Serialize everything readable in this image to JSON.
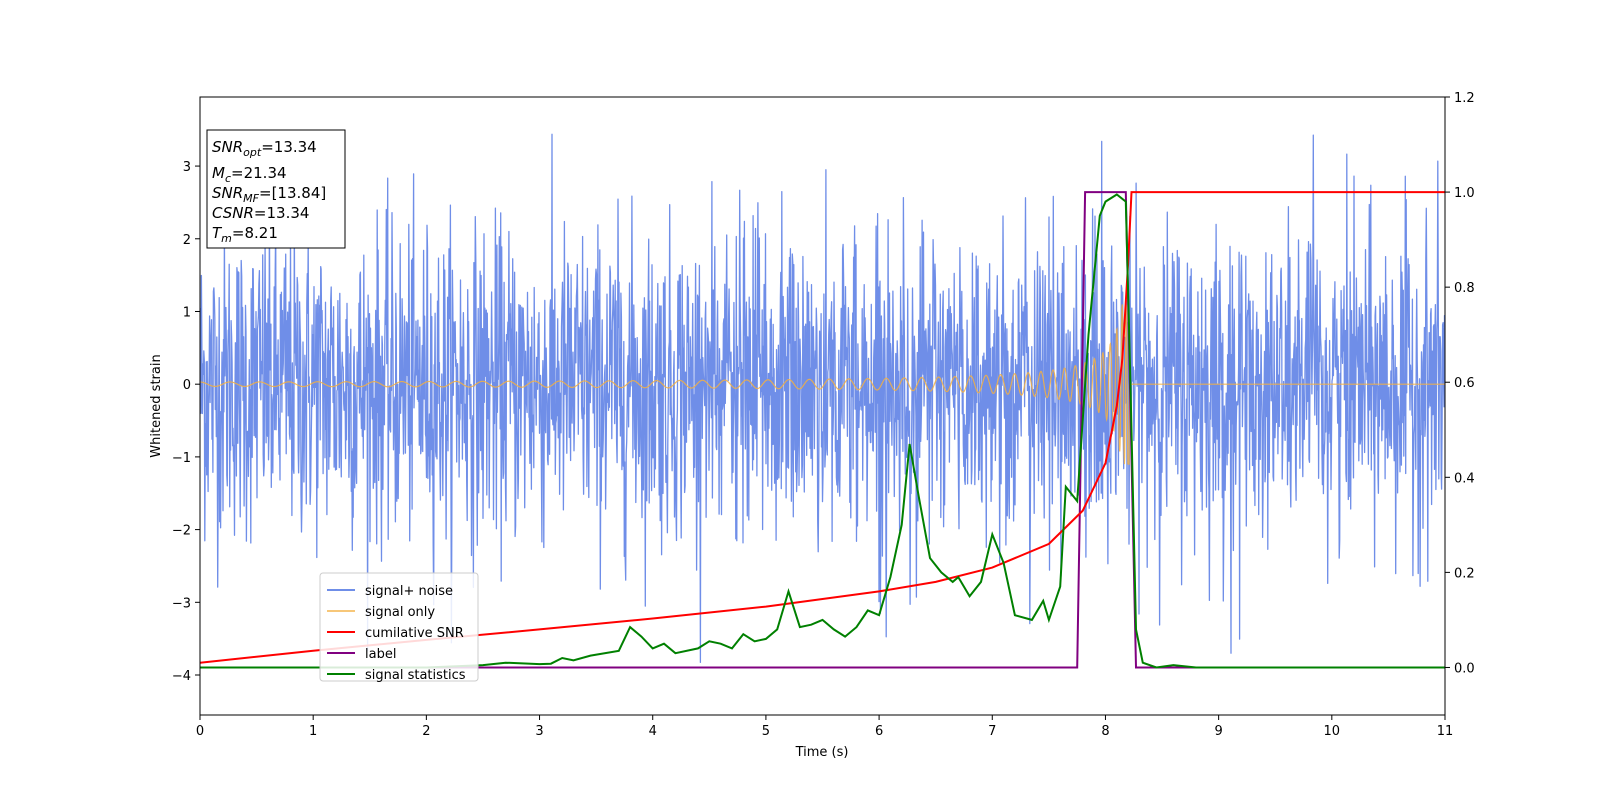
{
  "chart_data": {
    "type": "line",
    "title": "",
    "xlabel": "Time (s)",
    "ylabel": "Whitened strain",
    "y2label": "",
    "xlim": [
      0,
      11
    ],
    "ylim": [
      -4.55,
      3.95
    ],
    "y2lim": [
      -0.1,
      1.2
    ],
    "x_ticks": [
      "0",
      "1",
      "2",
      "3",
      "4",
      "5",
      "6",
      "7",
      "8",
      "9",
      "10",
      "11"
    ],
    "y_ticks": [
      "3",
      "2",
      "1",
      "0",
      "−1",
      "−2",
      "−3",
      "−4"
    ],
    "y2_ticks": [
      "1.2",
      "1.0",
      "0.8",
      "0.6",
      "0.4",
      "0.2",
      "0.0"
    ],
    "grid": false,
    "legend_position": "lower-left",
    "info_box": {
      "snr_opt_label": "SNR",
      "snr_opt_sub": "opt",
      "snr_opt_value": "=13.34",
      "mc_label": "M",
      "mc_sub": "c",
      "mc_value": "=21.34",
      "snr_mf_label": "SNR",
      "snr_mf_sub": "MF",
      "snr_mf_value": "=[13.84]",
      "csnr_label": "CSNR",
      "csnr_value": "=13.34",
      "tm_label": "T",
      "tm_sub": "m",
      "tm_value": "=8.21"
    },
    "series": [
      {
        "name": "signal+ noise",
        "axis": "left",
        "color": "#6f8ee8",
        "description": "noise band approx. between -2.5 and 2.5 with spikes to about 3.4 and -4.0",
        "envelope": {
          "typical_amplitude": 1.7,
          "max": 3.45,
          "min": -3.95
        }
      },
      {
        "name": "signal only",
        "axis": "left",
        "color": "#f5b041",
        "chirp": {
          "t_merge": 8.21,
          "amplitude_start": 0.03,
          "amplitude_peak": 1.1
        }
      },
      {
        "name": "cumilative SNR",
        "axis": "right",
        "color": "#ff0000",
        "points": [
          [
            0,
            0.01
          ],
          [
            1,
            0.035
          ],
          [
            2,
            0.058
          ],
          [
            3,
            0.08
          ],
          [
            4,
            0.103
          ],
          [
            5,
            0.128
          ],
          [
            6,
            0.16
          ],
          [
            6.5,
            0.18
          ],
          [
            7,
            0.21
          ],
          [
            7.5,
            0.26
          ],
          [
            7.8,
            0.33
          ],
          [
            8.0,
            0.43
          ],
          [
            8.1,
            0.55
          ],
          [
            8.15,
            0.65
          ],
          [
            8.2,
            0.85
          ],
          [
            8.23,
            1.0
          ],
          [
            11,
            1.0
          ]
        ]
      },
      {
        "name": "label",
        "axis": "right",
        "color": "#800080",
        "points": [
          [
            0,
            0
          ],
          [
            7.75,
            0
          ],
          [
            7.82,
            1.0
          ],
          [
            8.18,
            1.0
          ],
          [
            8.27,
            0
          ],
          [
            11,
            0
          ]
        ]
      },
      {
        "name": "signal statistics",
        "axis": "right",
        "color": "#008000",
        "points": [
          [
            0,
            0.0
          ],
          [
            1.0,
            0.0
          ],
          [
            2.0,
            0.0
          ],
          [
            2.5,
            0.005
          ],
          [
            2.7,
            0.01
          ],
          [
            3.0,
            0.007
          ],
          [
            3.1,
            0.008
          ],
          [
            3.2,
            0.02
          ],
          [
            3.3,
            0.015
          ],
          [
            3.45,
            0.025
          ],
          [
            3.7,
            0.035
          ],
          [
            3.8,
            0.085
          ],
          [
            3.9,
            0.065
          ],
          [
            4.0,
            0.04
          ],
          [
            4.1,
            0.05
          ],
          [
            4.2,
            0.03
          ],
          [
            4.4,
            0.04
          ],
          [
            4.5,
            0.055
          ],
          [
            4.6,
            0.05
          ],
          [
            4.7,
            0.04
          ],
          [
            4.8,
            0.07
          ],
          [
            4.9,
            0.055
          ],
          [
            5.0,
            0.06
          ],
          [
            5.1,
            0.08
          ],
          [
            5.2,
            0.16
          ],
          [
            5.3,
            0.085
          ],
          [
            5.4,
            0.09
          ],
          [
            5.5,
            0.1
          ],
          [
            5.6,
            0.08
          ],
          [
            5.7,
            0.065
          ],
          [
            5.8,
            0.085
          ],
          [
            5.9,
            0.12
          ],
          [
            6.0,
            0.11
          ],
          [
            6.1,
            0.19
          ],
          [
            6.2,
            0.3
          ],
          [
            6.27,
            0.47
          ],
          [
            6.35,
            0.36
          ],
          [
            6.45,
            0.23
          ],
          [
            6.55,
            0.2
          ],
          [
            6.65,
            0.18
          ],
          [
            6.7,
            0.19
          ],
          [
            6.8,
            0.15
          ],
          [
            6.9,
            0.18
          ],
          [
            7.0,
            0.28
          ],
          [
            7.1,
            0.22
          ],
          [
            7.2,
            0.11
          ],
          [
            7.35,
            0.1
          ],
          [
            7.45,
            0.14
          ],
          [
            7.5,
            0.1
          ],
          [
            7.6,
            0.17
          ],
          [
            7.65,
            0.38
          ],
          [
            7.75,
            0.35
          ],
          [
            7.85,
            0.7
          ],
          [
            7.95,
            0.95
          ],
          [
            8.0,
            0.98
          ],
          [
            8.1,
            0.995
          ],
          [
            8.18,
            0.98
          ],
          [
            8.22,
            0.6
          ],
          [
            8.27,
            0.08
          ],
          [
            8.33,
            0.01
          ],
          [
            8.45,
            0.0
          ],
          [
            8.6,
            0.005
          ],
          [
            8.8,
            0.0
          ],
          [
            11,
            0.0
          ]
        ]
      }
    ]
  }
}
